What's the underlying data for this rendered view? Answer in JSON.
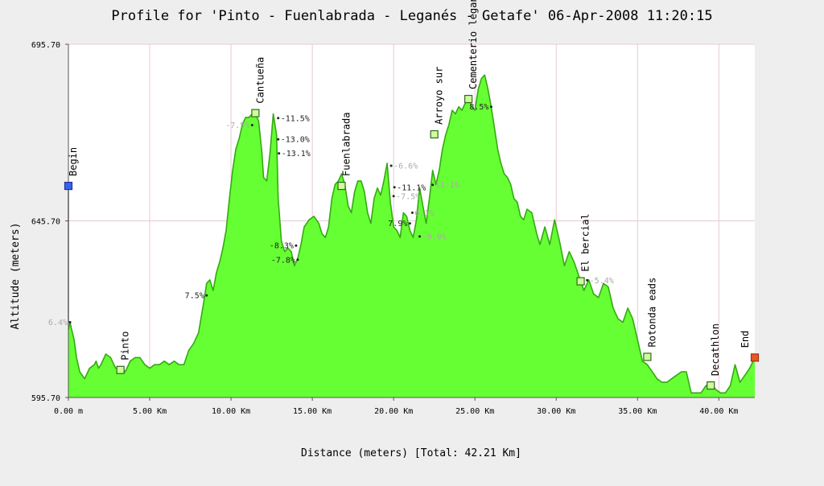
{
  "chart_data": {
    "type": "area",
    "title": "Profile for 'Pinto - Fuenlabrada - Leganés - Getafe' 06-Apr-2008 11:20:15",
    "xlabel": "Distance (meters) [Total: 42.21 Km]",
    "ylabel": "Altitude (meters)",
    "xlim": [
      0,
      42.21
    ],
    "ylim": [
      595.7,
      695.7
    ],
    "grid": true,
    "x_ticks": [
      {
        "value": 0,
        "label": "0.00 m"
      },
      {
        "value": 5,
        "label": "5.00 Km"
      },
      {
        "value": 10,
        "label": "10.00 Km"
      },
      {
        "value": 15,
        "label": "15.00 Km"
      },
      {
        "value": 20,
        "label": "20.00 Km"
      },
      {
        "value": 25,
        "label": "25.00 Km"
      },
      {
        "value": 30,
        "label": "30.00 Km"
      },
      {
        "value": 35,
        "label": "35.00 Km"
      },
      {
        "value": 40,
        "label": "40.00 Km"
      }
    ],
    "y_ticks": [
      {
        "value": 595.7,
        "label": "595.70"
      },
      {
        "value": 645.7,
        "label": "645.70"
      },
      {
        "value": 695.7,
        "label": "695.70"
      }
    ],
    "series": [
      {
        "fill": "#66ff33",
        "stroke": "#33aa11",
        "x": [
          0,
          0.1,
          0.2,
          0.35,
          0.5,
          0.7,
          1.0,
          1.3,
          1.6,
          1.7,
          1.85,
          2.0,
          2.3,
          2.6,
          2.9,
          3.2,
          3.5,
          3.8,
          4.1,
          4.4,
          4.7,
          5.0,
          5.3,
          5.6,
          5.9,
          6.2,
          6.5,
          6.8,
          7.1,
          7.4,
          7.7,
          8.0,
          8.3,
          8.5,
          8.7,
          8.9,
          9.1,
          9.3,
          9.5,
          9.7,
          9.9,
          10.1,
          10.3,
          10.5,
          10.7,
          10.9,
          11.1,
          11.3,
          11.5,
          11.7,
          11.9,
          12.0,
          12.2,
          12.4,
          12.6,
          12.8,
          12.9,
          13.1,
          13.3,
          13.5,
          13.7,
          13.9,
          14.1,
          14.3,
          14.5,
          14.8,
          15.1,
          15.4,
          15.6,
          15.8,
          16.0,
          16.2,
          16.4,
          16.6,
          16.8,
          17.0,
          17.2,
          17.4,
          17.6,
          17.8,
          18.0,
          18.2,
          18.4,
          18.6,
          18.8,
          19.0,
          19.2,
          19.4,
          19.6,
          19.8,
          20.0,
          20.2,
          20.4,
          20.6,
          20.8,
          21.0,
          21.2,
          21.4,
          21.6,
          21.8,
          22.0,
          22.2,
          22.4,
          22.6,
          22.8,
          23.0,
          23.2,
          23.4,
          23.6,
          23.8,
          24.0,
          24.2,
          24.4,
          24.6,
          24.8,
          25.0,
          25.2,
          25.4,
          25.6,
          25.8,
          26.0,
          26.2,
          26.4,
          26.6,
          26.8,
          27.0,
          27.2,
          27.4,
          27.6,
          27.8,
          28.0,
          28.2,
          28.5,
          28.8,
          29.0,
          29.3,
          29.6,
          29.9,
          30.2,
          30.5,
          30.8,
          31.1,
          31.4,
          31.7,
          32.0,
          32.3,
          32.6,
          32.9,
          33.2,
          33.5,
          33.8,
          34.1,
          34.4,
          34.7,
          35.0,
          35.3,
          35.6,
          35.9,
          36.2,
          36.5,
          36.8,
          37.1,
          37.4,
          37.7,
          38.0,
          38.3,
          38.6,
          38.9,
          39.2,
          39.5,
          39.8,
          40.1,
          40.4,
          40.7,
          41.0,
          41.3,
          41.6,
          41.9,
          42.21
        ],
        "y": [
          615,
          617,
          615,
          612,
          607,
          603,
          601,
          604,
          605,
          606,
          604,
          605,
          608,
          607,
          604,
          604,
          603,
          606,
          607,
          607,
          605,
          604,
          605,
          605,
          606,
          605,
          606,
          605,
          605,
          609,
          611,
          614,
          622,
          628,
          629,
          626,
          631,
          634,
          638,
          643,
          652,
          660,
          666,
          669,
          673,
          675,
          675,
          676,
          676,
          674,
          665,
          658,
          657,
          665,
          676,
          670,
          652,
          640,
          637,
          638,
          637,
          633,
          635,
          639,
          644,
          646,
          647,
          645,
          642,
          641,
          644,
          652,
          656,
          657,
          659,
          656,
          650,
          648,
          654,
          657,
          657,
          654,
          648,
          645,
          652,
          655,
          653,
          657,
          662,
          651,
          644,
          643,
          641,
          648,
          647,
          643,
          641,
          646,
          655,
          650,
          645,
          652,
          660,
          656,
          660,
          666,
          670,
          673,
          677,
          676,
          678,
          677,
          679,
          681,
          678,
          677,
          683,
          686,
          687,
          683,
          678,
          672,
          666,
          662,
          659,
          658,
          656,
          652,
          651,
          647,
          646,
          649,
          648,
          642,
          639,
          644,
          639,
          646,
          640,
          633,
          637,
          634,
          630,
          626,
          629,
          625,
          624,
          628,
          627,
          621,
          618,
          617,
          621,
          618,
          612,
          606,
          605,
          603,
          601,
          600,
          600,
          601,
          602,
          603,
          603,
          597,
          597,
          597,
          599,
          600,
          598,
          597,
          597,
          599,
          605,
          600,
          602,
          604,
          607
        ]
      }
    ],
    "markers": [
      {
        "x": 0,
        "y": 655.6,
        "label": "Begin",
        "color": "#3366ee",
        "stroke": "#223399"
      },
      {
        "x": 3.2,
        "y": 603.5,
        "label": "Pinto",
        "color": "#ccff99",
        "stroke": "#336622"
      },
      {
        "x": 11.5,
        "y": 676.2,
        "label": "Cantueña",
        "color": "#ccff99",
        "stroke": "#336622"
      },
      {
        "x": 16.8,
        "y": 655.6,
        "label": "Fuenlabrada",
        "color": "#ccff99",
        "stroke": "#336622"
      },
      {
        "x": 22.5,
        "y": 670.2,
        "label": "Arroyo sur",
        "color": "#ccff99",
        "stroke": "#336622"
      },
      {
        "x": 24.6,
        "y": 680.2,
        "label": "Cementerio leganes",
        "color": "#ccff99",
        "stroke": "#336622"
      },
      {
        "x": 31.5,
        "y": 628.6,
        "label": "El bercial",
        "color": "#ccff99",
        "stroke": "#336622"
      },
      {
        "x": 35.6,
        "y": 607.2,
        "label": "Rotonda eads",
        "color": "#ccff99",
        "stroke": "#336622"
      },
      {
        "x": 39.5,
        "y": 599.1,
        "label": "Decathlon",
        "color": "#ccff99",
        "stroke": "#336622"
      },
      {
        "x": 42.21,
        "y": 607.0,
        "label": "End",
        "color": "#ee5522",
        "stroke": "#993311"
      }
    ],
    "annotations": [
      {
        "x": 0.1,
        "y": 617.0,
        "label": "6.4%",
        "side": "left",
        "color": "#aaaaaa"
      },
      {
        "x": 8.5,
        "y": 624.6,
        "label": "7.5%",
        "side": "left",
        "color": "#222222"
      },
      {
        "x": 11.3,
        "y": 672.8,
        "label": "-7.5%",
        "side": "left",
        "color": "#aaaaaa"
      },
      {
        "x": 12.9,
        "y": 674.8,
        "label": "-11.5%",
        "side": "right",
        "color": "#222222"
      },
      {
        "x": 12.9,
        "y": 668.8,
        "label": "-13.0%",
        "side": "right",
        "color": "#222222"
      },
      {
        "x": 12.95,
        "y": 664.8,
        "label": "-13.1%",
        "side": "right",
        "color": "#222222"
      },
      {
        "x": 14.0,
        "y": 638.7,
        "label": "-8.3%",
        "side": "left",
        "color": "#222222"
      },
      {
        "x": 14.1,
        "y": 634.7,
        "label": "-7.8%",
        "side": "left",
        "color": "#222222"
      },
      {
        "x": 19.85,
        "y": 661.3,
        "label": "-6.6%",
        "side": "right",
        "color": "#aaaaaa"
      },
      {
        "x": 20.05,
        "y": 655.2,
        "label": "-11.1%",
        "side": "right",
        "color": "#222222"
      },
      {
        "x": 20.0,
        "y": 652.7,
        "label": "-7.5%",
        "side": "right",
        "color": "#aaaaaa"
      },
      {
        "x": 21.15,
        "y": 648.0,
        "label": "6.1%",
        "side": "right",
        "color": "#aaaaaa"
      },
      {
        "x": 21.0,
        "y": 645.0,
        "label": "7.9%",
        "side": "left",
        "color": "#222222"
      },
      {
        "x": 21.6,
        "y": 641.3,
        "label": "-9.9%",
        "side": "right",
        "color": "#aaaaaa"
      },
      {
        "x": 22.4,
        "y": 655.9,
        "label": "11.1%",
        "side": "right",
        "color": "#aaaaaa"
      },
      {
        "x": 26.0,
        "y": 678.0,
        "label": "8.5%",
        "side": "left",
        "color": "#222222"
      },
      {
        "x": 31.9,
        "y": 628.9,
        "label": "-5.4%",
        "side": "right",
        "color": "#aaaaaa"
      }
    ]
  }
}
